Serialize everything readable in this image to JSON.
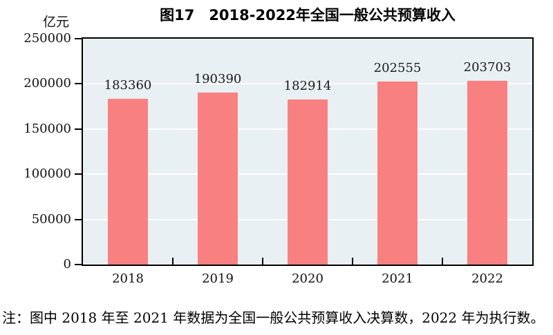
{
  "figure": {
    "title": "图17　2018-2022年全国一般公共预算收入",
    "unit_label": "亿元",
    "note": "注：图中 2018 年至 2021 年数据为全国一般公共预算收入决算数，2022 年为执行数。"
  },
  "chart_data": {
    "type": "bar",
    "title": "图17　2018-2022年全国一般公共预算收入",
    "categories": [
      "2018",
      "2019",
      "2020",
      "2021",
      "2022"
    ],
    "values": [
      183360,
      190390,
      182914,
      202555,
      203703
    ],
    "xlabel": "",
    "ylabel": "亿元",
    "ylim": [
      0,
      250000
    ],
    "yticks": [
      0,
      50000,
      100000,
      150000,
      200000,
      250000
    ],
    "grid": true,
    "legend": false,
    "data_labels": true,
    "colors": {
      "bar": "#f98080",
      "plot_background": "#e9f0f3",
      "gridline": "#ffffff",
      "axis": "#000000",
      "text": "#111111"
    }
  }
}
